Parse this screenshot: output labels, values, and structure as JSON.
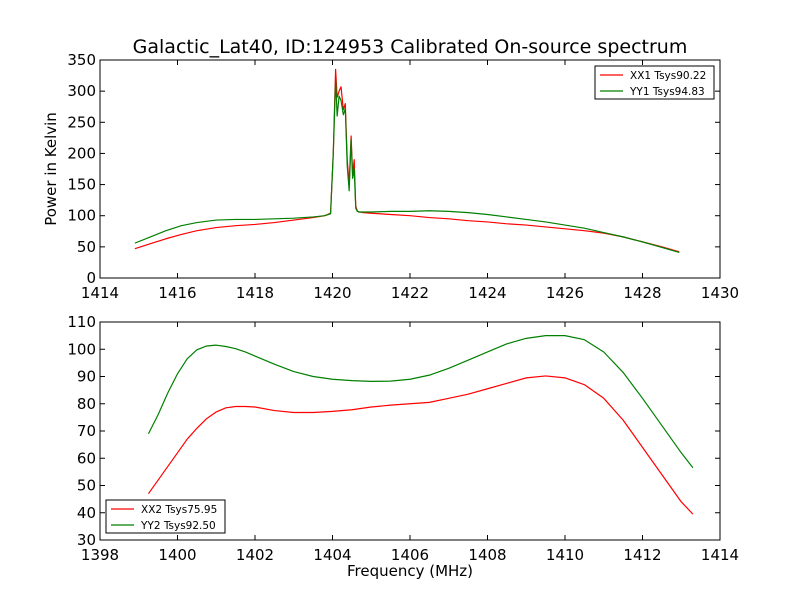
{
  "chart_data": [
    {
      "type": "line",
      "title": "Galactic_Lat40, ID:124953 Calibrated On-source spectrum",
      "xlabel": "",
      "ylabel": "Power in Kelvin",
      "xlim": [
        1414,
        1430
      ],
      "ylim": [
        0,
        350
      ],
      "xticks": [
        1414,
        1416,
        1418,
        1420,
        1422,
        1424,
        1426,
        1428,
        1430
      ],
      "yticks": [
        0,
        50,
        100,
        150,
        200,
        250,
        300,
        350
      ],
      "grid": false,
      "legend_position": "top-right",
      "series": [
        {
          "name": "XX1 Tsys90.22",
          "color": "#ff0000",
          "x": [
            1414.9,
            1415.3,
            1415.7,
            1416.1,
            1416.5,
            1417.0,
            1417.5,
            1418.0,
            1418.5,
            1419.0,
            1419.5,
            1419.8,
            1419.95,
            1420.02,
            1420.08,
            1420.12,
            1420.17,
            1420.22,
            1420.28,
            1420.33,
            1420.38,
            1420.43,
            1420.48,
            1420.52,
            1420.56,
            1420.6,
            1420.64,
            1420.68,
            1420.72,
            1420.8,
            1421.0,
            1421.5,
            1422.0,
            1422.5,
            1423.0,
            1423.5,
            1424.0,
            1424.5,
            1425.0,
            1425.5,
            1426.0,
            1426.5,
            1427.0,
            1427.5,
            1428.0,
            1428.5,
            1428.95
          ],
          "y": [
            47,
            55,
            63,
            70,
            76,
            81,
            84,
            86,
            89,
            93,
            97,
            100,
            104,
            200,
            335,
            290,
            300,
            307,
            270,
            280,
            190,
            150,
            228,
            165,
            190,
            115,
            108,
            106,
            106,
            105,
            104,
            102,
            100,
            97,
            95,
            92,
            90,
            87,
            85,
            82,
            79,
            76,
            72,
            66,
            58,
            50,
            42
          ]
        },
        {
          "name": "YY1 Tsys94.83",
          "color": "#008000",
          "x": [
            1414.9,
            1415.3,
            1415.7,
            1416.1,
            1416.5,
            1417.0,
            1417.5,
            1418.0,
            1418.5,
            1419.0,
            1419.5,
            1419.8,
            1419.95,
            1420.02,
            1420.08,
            1420.12,
            1420.17,
            1420.22,
            1420.28,
            1420.33,
            1420.38,
            1420.43,
            1420.48,
            1420.52,
            1420.56,
            1420.6,
            1420.64,
            1420.68,
            1420.72,
            1420.8,
            1421.0,
            1421.5,
            1422.0,
            1422.5,
            1423.0,
            1423.5,
            1424.0,
            1424.5,
            1425.0,
            1425.5,
            1426.0,
            1426.5,
            1427.0,
            1427.5,
            1428.0,
            1428.5,
            1428.95
          ],
          "y": [
            56,
            66,
            76,
            84,
            89,
            93,
            94,
            94,
            95,
            96,
            98,
            100,
            103,
            200,
            318,
            260,
            292,
            285,
            262,
            272,
            180,
            140,
            222,
            160,
            175,
            112,
            107,
            106,
            106,
            106,
            106,
            107,
            107,
            108,
            107,
            105,
            102,
            98,
            94,
            90,
            85,
            80,
            73,
            66,
            58,
            49,
            41
          ]
        }
      ]
    },
    {
      "type": "line",
      "title": "",
      "xlabel": "Frequency (MHz)",
      "ylabel": "",
      "xlim": [
        1398,
        1414
      ],
      "ylim": [
        30,
        110
      ],
      "xticks": [
        1398,
        1400,
        1402,
        1404,
        1406,
        1408,
        1410,
        1412,
        1414
      ],
      "yticks": [
        30,
        40,
        50,
        60,
        70,
        80,
        90,
        100,
        110
      ],
      "grid": false,
      "legend_position": "bottom-left",
      "series": [
        {
          "name": "XX2 Tsys75.95",
          "color": "#ff0000",
          "x": [
            1399.25,
            1399.5,
            1399.75,
            1400.0,
            1400.25,
            1400.5,
            1400.75,
            1401.0,
            1401.25,
            1401.5,
            1401.75,
            1402.0,
            1402.5,
            1403.0,
            1403.5,
            1404.0,
            1404.5,
            1405.0,
            1405.5,
            1406.0,
            1406.5,
            1407.0,
            1407.5,
            1408.0,
            1408.5,
            1409.0,
            1409.5,
            1410.0,
            1410.5,
            1411.0,
            1411.5,
            1412.0,
            1412.5,
            1413.0,
            1413.3
          ],
          "y": [
            47,
            52,
            57,
            62,
            67,
            71,
            74.5,
            77,
            78.5,
            79,
            79,
            78.8,
            77.5,
            76.8,
            76.8,
            77.2,
            77.8,
            78.8,
            79.5,
            80,
            80.5,
            82,
            83.5,
            85.5,
            87.5,
            89.5,
            90.2,
            89.5,
            87,
            82,
            74,
            64,
            54,
            44,
            39.5
          ]
        },
        {
          "name": "YY2 Tsys92.50",
          "color": "#008000",
          "x": [
            1399.25,
            1399.5,
            1399.75,
            1400.0,
            1400.25,
            1400.5,
            1400.75,
            1401.0,
            1401.25,
            1401.5,
            1401.75,
            1402.0,
            1402.5,
            1403.0,
            1403.5,
            1404.0,
            1404.5,
            1405.0,
            1405.5,
            1406.0,
            1406.5,
            1407.0,
            1407.5,
            1408.0,
            1408.5,
            1409.0,
            1409.5,
            1410.0,
            1410.5,
            1411.0,
            1411.5,
            1412.0,
            1412.5,
            1413.0,
            1413.3
          ],
          "y": [
            69,
            76,
            84,
            91,
            96.5,
            99.8,
            101.2,
            101.5,
            101,
            100.2,
            99,
            97.5,
            94.5,
            91.8,
            90,
            89,
            88.5,
            88.2,
            88.3,
            89,
            90.5,
            93,
            96,
            99,
            102,
            104,
            105,
            105,
            103.5,
            99,
            91.5,
            82,
            72,
            62,
            56.5
          ]
        }
      ]
    }
  ]
}
